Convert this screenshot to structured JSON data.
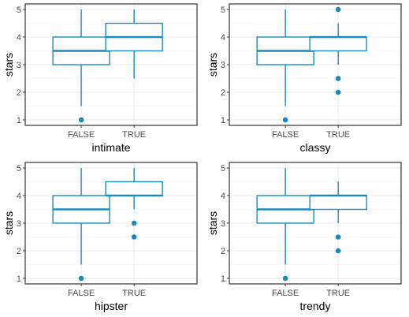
{
  "chart_data": [
    {
      "type": "box",
      "xlabel": "intimate",
      "ylabel": "stars",
      "ylim": [
        1,
        5
      ],
      "yticks": [
        1,
        2,
        3,
        4,
        5
      ],
      "categories": [
        "FALSE",
        "TRUE"
      ],
      "boxes": [
        {
          "category": "FALSE",
          "min": 1.5,
          "q1": 3.0,
          "median": 3.5,
          "q3": 4.0,
          "max": 5.0,
          "outliers": [
            1.0
          ]
        },
        {
          "category": "TRUE",
          "min": 2.5,
          "q1": 3.5,
          "median": 4.0,
          "q3": 4.5,
          "max": 5.0,
          "outliers": []
        }
      ],
      "color": "#1a8bbd",
      "grid": true
    },
    {
      "type": "box",
      "xlabel": "classy",
      "ylabel": "stars",
      "ylim": [
        1,
        5
      ],
      "yticks": [
        1,
        2,
        3,
        4,
        5
      ],
      "categories": [
        "FALSE",
        "TRUE"
      ],
      "boxes": [
        {
          "category": "FALSE",
          "min": 1.5,
          "q1": 3.0,
          "median": 3.5,
          "q3": 4.0,
          "max": 5.0,
          "outliers": [
            1.0
          ]
        },
        {
          "category": "TRUE",
          "min": 3.0,
          "q1": 3.5,
          "median": 4.0,
          "q3": 4.0,
          "max": 4.5,
          "outliers": [
            2.0,
            2.5,
            5.0
          ]
        }
      ],
      "color": "#1a8bbd",
      "grid": true
    },
    {
      "type": "box",
      "xlabel": "hipster",
      "ylabel": "stars",
      "ylim": [
        1,
        5
      ],
      "yticks": [
        1,
        2,
        3,
        4,
        5
      ],
      "categories": [
        "FALSE",
        "TRUE"
      ],
      "boxes": [
        {
          "category": "FALSE",
          "min": 1.5,
          "q1": 3.0,
          "median": 3.5,
          "q3": 4.0,
          "max": 5.0,
          "outliers": [
            1.0
          ]
        },
        {
          "category": "TRUE",
          "min": 3.5,
          "q1": 4.0,
          "median": 4.0,
          "q3": 4.5,
          "max": 5.0,
          "outliers": [
            2.5,
            3.0
          ]
        }
      ],
      "color": "#1a8bbd",
      "grid": true
    },
    {
      "type": "box",
      "xlabel": "trendy",
      "ylabel": "stars",
      "ylim": [
        1,
        5
      ],
      "yticks": [
        1,
        2,
        3,
        4,
        5
      ],
      "categories": [
        "FALSE",
        "TRUE"
      ],
      "boxes": [
        {
          "category": "FALSE",
          "min": 1.5,
          "q1": 3.0,
          "median": 3.5,
          "q3": 4.0,
          "max": 5.0,
          "outliers": [
            1.0
          ]
        },
        {
          "category": "TRUE",
          "min": 3.0,
          "q1": 3.5,
          "median": 4.0,
          "q3": 4.0,
          "max": 4.5,
          "outliers": [
            2.0,
            2.5
          ]
        }
      ],
      "color": "#1a8bbd",
      "grid": true
    }
  ]
}
